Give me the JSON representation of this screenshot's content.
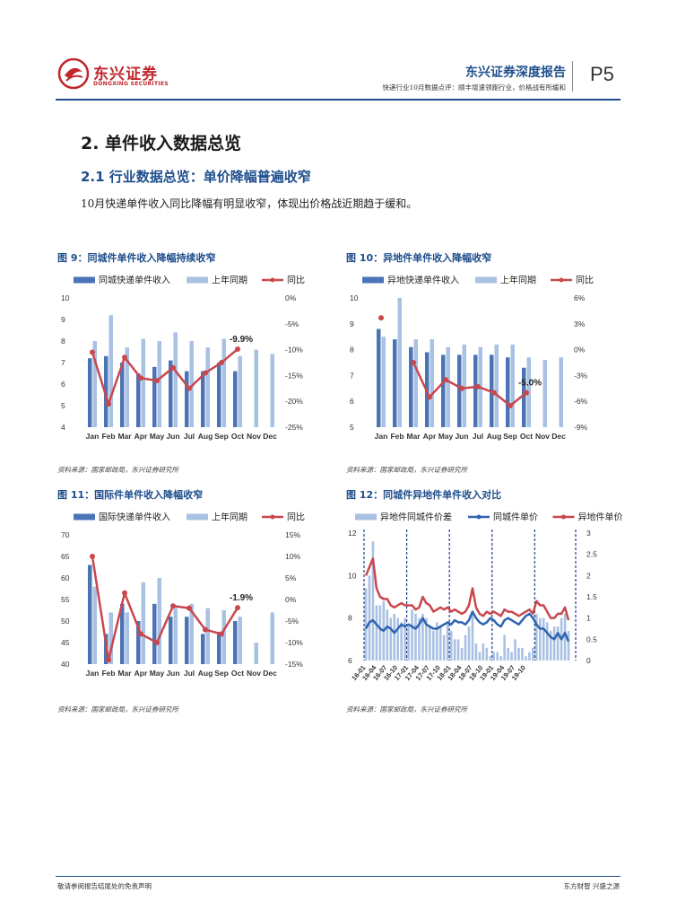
{
  "header": {
    "logo_cn": "东兴证券",
    "logo_en": "DONGXING SECURITIES",
    "report_type": "东兴证券深度报告",
    "subtitle": "快递行业10月数据点评：顺丰增速领跑行业，价格战有所缓和",
    "page": "P5",
    "brand_color": "#c0272d",
    "accent_color": "#1f4e8c"
  },
  "section": {
    "h1": "2. 单件收入数据总览",
    "h2": "2.1 行业数据总览：单价降幅普遍收窄",
    "paragraph": "10月快递单件收入同比降幅有明显收窄，体现出价格战近期趋于缓和。"
  },
  "figures": [
    {
      "title": "图 9：同城件单件收入降幅持续收窄",
      "source": "资料来源：国家邮政局，东兴证券研究所"
    },
    {
      "title": "图 10：异地件单件收入降幅收窄",
      "source": "资料来源：国家邮政局，东兴证券研究所"
    },
    {
      "title": "图 11：国际件单件收入降幅收窄",
      "source": "资料来源：国家邮政局，东兴证券研究所"
    },
    {
      "title": "图 12：同城件异地件单件收入对比",
      "source": "资料来源：国家邮政局，东兴证券研究所"
    }
  ],
  "chart_data": [
    {
      "type": "bar",
      "categories": [
        "Jan",
        "Feb",
        "Mar",
        "Apr",
        "May",
        "Jun",
        "Jul",
        "Aug",
        "Sep",
        "Oct",
        "Nov",
        "Dec"
      ],
      "series": [
        {
          "name": "同城快递单件收入",
          "values": [
            7.2,
            7.3,
            7.0,
            6.5,
            6.8,
            7.1,
            6.6,
            6.6,
            7.0,
            6.6,
            null,
            null
          ],
          "color": "#4a74b4"
        },
        {
          "name": "上年同期",
          "values": [
            8.0,
            9.2,
            7.7,
            8.1,
            8.0,
            8.4,
            8.0,
            7.7,
            8.1,
            7.3,
            7.6,
            7.4
          ],
          "color": "#a9c1e3"
        },
        {
          "name": "同比",
          "values": [
            -10.5,
            -20.5,
            -11.5,
            -15.5,
            -16.0,
            -13.5,
            -17.5,
            -14.5,
            -12.5,
            -9.9,
            null,
            null
          ],
          "color": "#c9474d",
          "axis": "right"
        }
      ],
      "ylim_left": [
        4,
        10
      ],
      "yticks_left": [
        4,
        5,
        6,
        7,
        8,
        9,
        10
      ],
      "ylim_right": [
        -25,
        0
      ],
      "yticks_right": [
        "-25%",
        "-20%",
        "-15%",
        "-10%",
        "-5%",
        "0%"
      ],
      "annotation": "-9.9%",
      "legend": "top"
    },
    {
      "type": "bar",
      "categories": [
        "Jan",
        "Feb",
        "Mar",
        "Apr",
        "May",
        "Jun",
        "Jul",
        "Aug",
        "Sep",
        "Oct",
        "Nov",
        "Dec"
      ],
      "series": [
        {
          "name": "异地快递单件收入",
          "values": [
            8.8,
            8.4,
            8.1,
            7.9,
            7.8,
            7.8,
            7.8,
            7.8,
            7.7,
            7.3,
            null,
            null
          ],
          "color": "#4a74b4"
        },
        {
          "name": "上年同期",
          "values": [
            8.5,
            10.0,
            8.4,
            8.4,
            8.1,
            8.2,
            8.1,
            8.2,
            8.2,
            7.7,
            7.6,
            7.7
          ],
          "color": "#a9c1e3"
        },
        {
          "name": "同比",
          "values": [
            3.7,
            null,
            -1.5,
            -5.5,
            -3.5,
            -4.5,
            -4.3,
            -5.0,
            -6.5,
            -5.0,
            null,
            null
          ],
          "color": "#c9474d",
          "axis": "right"
        }
      ],
      "ylim_left": [
        5,
        10
      ],
      "yticks_left": [
        5,
        6,
        7,
        8,
        9,
        10
      ],
      "ylim_right": [
        -9,
        6
      ],
      "yticks_right": [
        "-9%",
        "-6%",
        "-3%",
        "0%",
        "3%",
        "6%"
      ],
      "annotation": "-5.0%",
      "legend": "top"
    },
    {
      "type": "bar",
      "categories": [
        "Jan",
        "Feb",
        "Mar",
        "Apr",
        "May",
        "Jun",
        "Jul",
        "Aug",
        "Sep",
        "Oct",
        "Nov",
        "Dec"
      ],
      "series": [
        {
          "name": "国际快递单件收入",
          "values": [
            63,
            47,
            54,
            50,
            54,
            51,
            51,
            47,
            47.5,
            50,
            null,
            null
          ],
          "color": "#4a74b4"
        },
        {
          "name": "上年同期",
          "values": [
            58,
            52,
            52,
            59,
            60,
            53,
            54,
            53,
            52.5,
            51,
            45,
            52
          ],
          "color": "#a9c1e3"
        },
        {
          "name": "同比",
          "values": [
            10,
            -14,
            1.5,
            -8,
            -10,
            -1.5,
            -2,
            -7,
            -8,
            -1.9,
            null,
            null
          ],
          "color": "#c9474d",
          "axis": "right"
        }
      ],
      "ylim_left": [
        40,
        70
      ],
      "yticks_left": [
        40,
        45,
        50,
        55,
        60,
        65,
        70
      ],
      "ylim_right": [
        -15,
        15
      ],
      "yticks_right": [
        "-15%",
        "-10%",
        "-5%",
        "0%",
        "5%",
        "10%",
        "15%"
      ],
      "annotation": "-1.9%",
      "legend": "top"
    },
    {
      "type": "line",
      "x_ticks": [
        "16-01",
        "16-04",
        "16-07",
        "16-10",
        "17-01",
        "17-04",
        "17-07",
        "17-10",
        "18-01",
        "18-04",
        "18-07",
        "18-10",
        "19-01",
        "19-04",
        "19-07",
        "19-10"
      ],
      "series": [
        {
          "name": "异地件同城件价差",
          "type": "bar",
          "axis": "right",
          "color": "#a9c1e3",
          "values": [
            1.7,
            2.0,
            2.8,
            1.3,
            1.3,
            1.4,
            1.2,
            1.0,
            1.1,
            1.0,
            0.9,
            1.0,
            0.8,
            1.2,
            1.1,
            1.0,
            1.1,
            1.0,
            0.8,
            0.7,
            0.9,
            0.8,
            0.6,
            0.9,
            0.7,
            0.5,
            0.5,
            0.3,
            0.6,
            0.8,
            1.1,
            0.4,
            0.2,
            0.4,
            0.3,
            0.1,
            0.2,
            0.2,
            0.1,
            0.6,
            0.3,
            0.2,
            0.5,
            0.3,
            0.3,
            0.1,
            0.2,
            0.3,
            1.1,
            1.0,
            1.0,
            0.9,
            0.7,
            0.8,
            0.8,
            1.0,
            1.1,
            0.7
          ]
        },
        {
          "name": "同城件单价",
          "axis": "left",
          "color": "#2f64b0",
          "values": [
            7.5,
            7.8,
            7.9,
            7.7,
            7.5,
            7.4,
            7.6,
            7.5,
            7.3,
            7.5,
            7.7,
            7.6,
            7.7,
            7.6,
            7.5,
            7.7,
            8.0,
            7.7,
            7.6,
            7.5,
            7.5,
            7.6,
            7.7,
            7.8,
            7.7,
            7.9,
            7.8,
            7.8,
            7.7,
            7.9,
            8.3,
            8.0,
            7.8,
            7.7,
            7.8,
            8.0,
            7.9,
            7.7,
            7.6,
            7.9,
            8.0,
            7.9,
            7.8,
            7.7,
            7.9,
            8.1,
            8.2,
            8.0,
            7.7,
            7.5,
            7.5,
            7.3,
            7.1,
            7.0,
            7.3,
            7.0,
            7.3,
            6.9
          ]
        },
        {
          "name": "异地件单价",
          "axis": "left",
          "color": "#c9474d",
          "values": [
            10.0,
            10.4,
            10.8,
            9.4,
            9.0,
            8.9,
            8.9,
            8.6,
            8.5,
            8.6,
            8.7,
            8.6,
            8.6,
            8.6,
            8.4,
            8.5,
            9.0,
            8.7,
            8.6,
            8.3,
            8.4,
            8.5,
            8.4,
            8.5,
            8.3,
            8.4,
            8.3,
            8.2,
            8.3,
            8.6,
            9.4,
            8.5,
            8.2,
            8.1,
            8.3,
            8.2,
            8.3,
            8.2,
            8.1,
            8.4,
            8.3,
            8.3,
            8.2,
            8.1,
            8.2,
            8.3,
            8.4,
            8.2,
            8.8,
            8.6,
            8.6,
            8.3,
            8.0,
            8.0,
            8.2,
            8.2,
            8.5,
            7.9
          ]
        }
      ],
      "ylim_left": [
        6,
        12
      ],
      "yticks_left": [
        6,
        8,
        10,
        12
      ],
      "ylim_right": [
        0,
        3
      ],
      "yticks_right": [
        0,
        0.5,
        1,
        1.5,
        2,
        2.5,
        3
      ],
      "legend": "top"
    }
  ]
}
